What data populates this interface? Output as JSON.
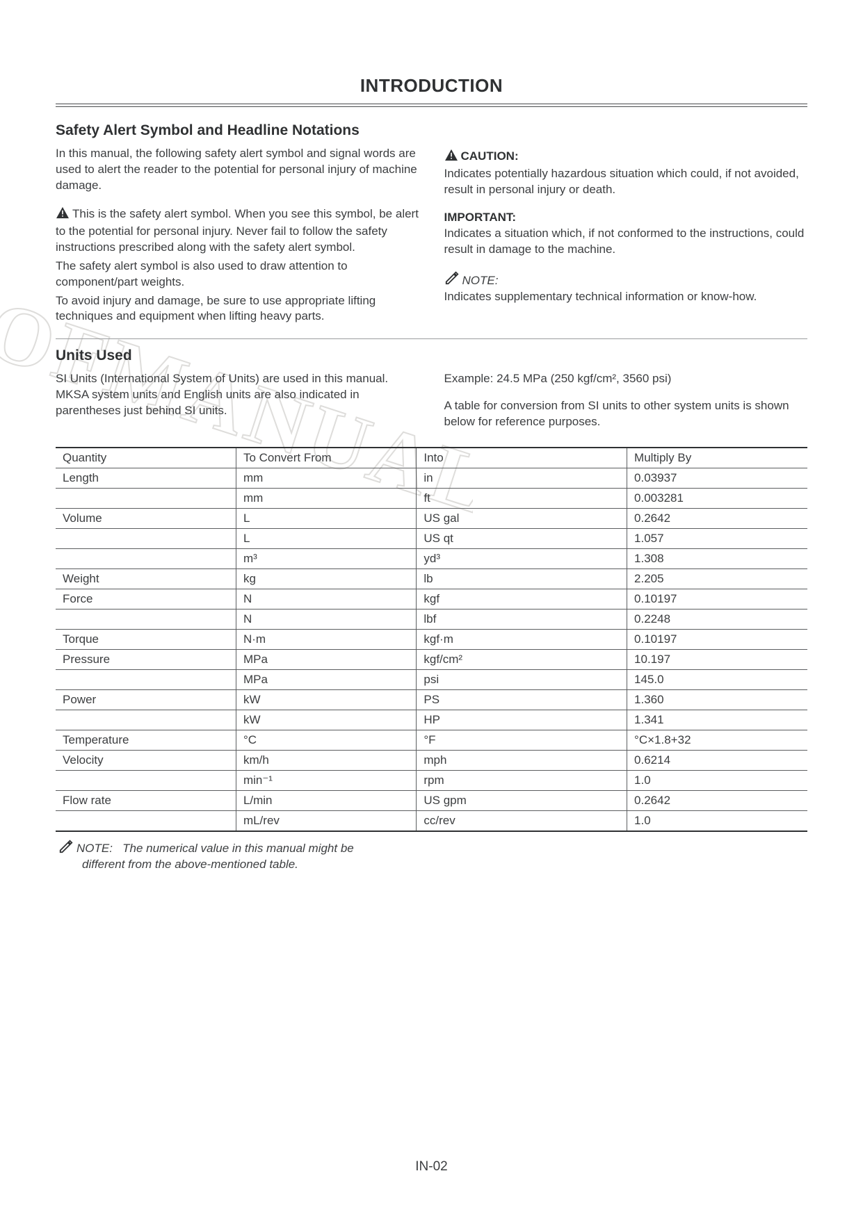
{
  "page": {
    "title": "INTRODUCTION",
    "pageNumber": "IN-02"
  },
  "section1": {
    "heading": "Safety Alert Symbol and Headline Notations",
    "left": {
      "p1": "In this manual, the following safety alert symbol and signal words are used to alert the reader to the potential for personal injury of machine damage.",
      "p2a": "This is the safety alert symbol. When you see this symbol, be alert to the potential for personal injury. Never fail to follow the safety instructions prescribed along with the safety alert symbol.",
      "p2b": "The safety alert symbol is also used to draw attention to component/part weights.",
      "p2c": "To avoid injury and damage, be sure to use appropriate lifting techniques and equipment when lifting heavy parts."
    },
    "right": {
      "cautionHead": "CAUTION:",
      "cautionBody": "Indicates potentially hazardous situation which could, if not avoided, result in personal injury or death.",
      "importantHead": "IMPORTANT:",
      "importantBody": "Indicates a situation which, if not conformed to the instructions, could result in damage to the machine.",
      "noteHead": "NOTE:",
      "noteBody": "Indicates supplementary technical information or know-how."
    }
  },
  "section2": {
    "heading": "Units Used",
    "left": "SI Units (International System of Units) are used in this manual. MKSA system units and English units are also indicated in parentheses just behind SI units.",
    "rightExample": "Example: 24.5 MPa (250 kgf/cm², 3560 psi)",
    "rightBody": "A table for conversion from SI units to other system units is shown below for reference purposes."
  },
  "table": {
    "headers": {
      "q": "Quantity",
      "f": "To Convert From",
      "i": "Into",
      "m": "Multiply By"
    },
    "rows": [
      {
        "q": "Length",
        "f": "mm",
        "i": "in",
        "m": "0.03937"
      },
      {
        "q": "",
        "f": "mm",
        "i": "ft",
        "m": "0.003281"
      },
      {
        "q": "Volume",
        "f": "L",
        "i": "US gal",
        "m": "0.2642"
      },
      {
        "q": "",
        "f": "L",
        "i": "US qt",
        "m": "1.057"
      },
      {
        "q": "",
        "f": "m³",
        "i": "yd³",
        "m": "1.308"
      },
      {
        "q": "Weight",
        "f": "kg",
        "i": "lb",
        "m": "2.205"
      },
      {
        "q": "Force",
        "f": "N",
        "i": "kgf",
        "m": "0.10197"
      },
      {
        "q": "",
        "f": "N",
        "i": "lbf",
        "m": "0.2248"
      },
      {
        "q": "Torque",
        "f": "N·m",
        "i": "kgf·m",
        "m": "0.10197"
      },
      {
        "q": "Pressure",
        "f": "MPa",
        "i": "kgf/cm²",
        "m": "10.197"
      },
      {
        "q": "",
        "f": "MPa",
        "i": "psi",
        "m": "145.0"
      },
      {
        "q": "Power",
        "f": "kW",
        "i": "PS",
        "m": "1.360"
      },
      {
        "q": "",
        "f": "kW",
        "i": "HP",
        "m": "1.341"
      },
      {
        "q": "Temperature",
        "f": "°C",
        "i": "°F",
        "m": "°C×1.8+32"
      },
      {
        "q": "Velocity",
        "f": "km/h",
        "i": "mph",
        "m": "0.6214"
      },
      {
        "q": "",
        "f": "min⁻¹",
        "i": "rpm",
        "m": "1.0"
      },
      {
        "q": "Flow rate",
        "f": "L/min",
        "i": "US gpm",
        "m": "0.2642"
      },
      {
        "q": "",
        "f": "mL/rev",
        "i": "cc/rev",
        "m": "1.0"
      }
    ]
  },
  "footnote": {
    "label": "NOTE:",
    "text1": "The numerical value in this manual might be",
    "text2": "different from the above-mentioned table."
  },
  "watermark": {
    "text": "OFMANUAL",
    "color": "#e6e6e4",
    "highlight": "#f4f4f2"
  },
  "colors": {
    "text": "#3c3e40",
    "heading": "#2f3133",
    "rule": "#5b5d5f",
    "background": "#ffffff"
  }
}
